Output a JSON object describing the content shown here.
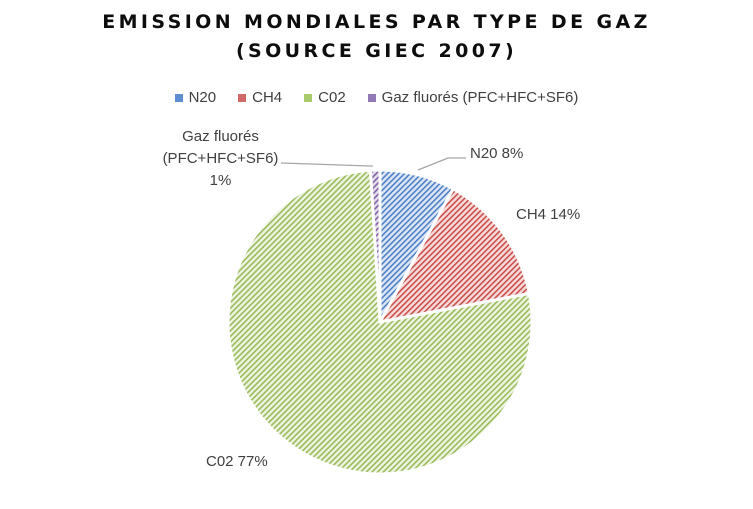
{
  "chart_data": {
    "type": "pie",
    "title": "EMISSION MONDIALES PAR TYPE DE GAZ (SOURCE GIEC 2007)",
    "title_lines": [
      "EMISSION MONDIALES PAR TYPE DE GAZ",
      "(SOURCE GIEC 2007)"
    ],
    "categories": [
      "N20",
      "CH4",
      "C02",
      "Gaz fluorés (PFC+HFC+SF6)"
    ],
    "values": [
      8,
      14,
      77,
      1
    ],
    "unit": "%",
    "colors": [
      "#4472c4",
      "#c0504d",
      "#9bbb59",
      "#8064a2"
    ],
    "fill_colors": [
      "#b4c7e7",
      "#f2b8b6",
      "#d6e6b5",
      "#c9b9dc"
    ],
    "legend_position": "top",
    "start_angle_deg": 0,
    "direction": "clockwise",
    "data_labels": [
      {
        "category": "N20",
        "text": "N20 8%"
      },
      {
        "category": "CH4",
        "text": "CH4 14%"
      },
      {
        "category": "C02",
        "text": "C02 77%"
      },
      {
        "category": "Gaz fluorés (PFC+HFC+SF6)",
        "lines": [
          "Gaz fluorés",
          "(PFC+HFC+SF6)",
          "1%"
        ]
      }
    ]
  },
  "legend": [
    {
      "label": "N20",
      "color": "#5b8dd0"
    },
    {
      "label": "CH4",
      "color": "#d06a68"
    },
    {
      "label": "C02",
      "color": "#a9c96d"
    },
    {
      "label": "Gaz fluorés (PFC+HFC+SF6)",
      "color": "#9279b5"
    }
  ]
}
